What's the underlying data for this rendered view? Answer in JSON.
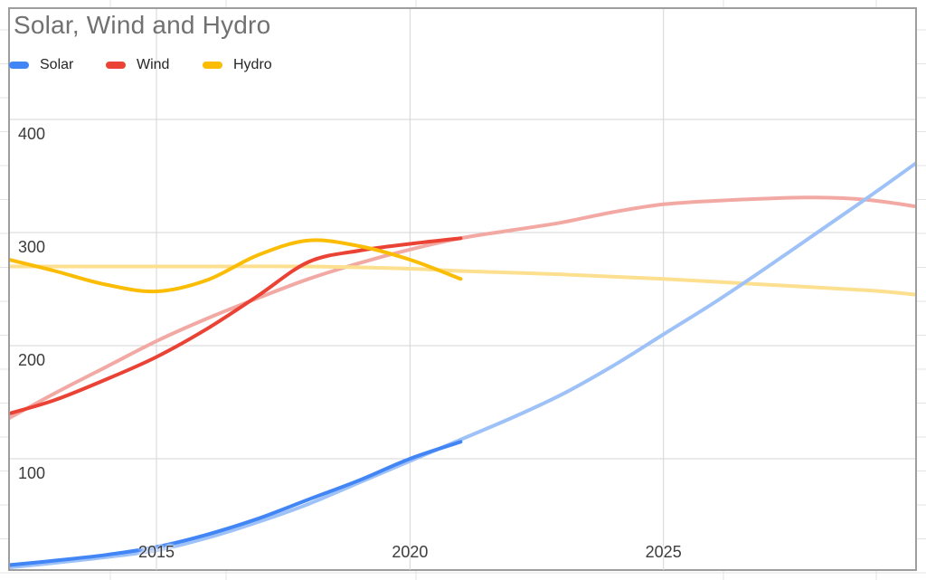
{
  "chart": {
    "title": "Solar, Wind and Hydro",
    "legend": {
      "items": [
        {
          "label": "Solar",
          "color": "#4285f4"
        },
        {
          "label": "Wind",
          "color": "#ea4335"
        },
        {
          "label": "Hydro",
          "color": "#fbbc04"
        }
      ]
    },
    "axes": {
      "x": {
        "ticks": [
          {
            "label": "2015",
            "year": 2015
          },
          {
            "label": "2020",
            "year": 2020
          },
          {
            "label": "2025",
            "year": 2025
          }
        ]
      },
      "y": {
        "ticks": [
          {
            "label": "400",
            "value": 400
          },
          {
            "label": "300",
            "value": 300
          },
          {
            "label": "200",
            "value": 200
          },
          {
            "label": "100",
            "value": 100
          }
        ]
      }
    }
  },
  "chart_data": {
    "type": "line",
    "title": "Solar, Wind and Hydro",
    "xlabel": "",
    "ylabel": "",
    "legend_position": "top-left",
    "grid": true,
    "x_axis": {
      "range": [
        2012.1,
        2030.0
      ],
      "gridlines": [
        2015,
        2020,
        2025
      ]
    },
    "y_axis": {
      "range": [
        0,
        498
      ],
      "gridlines": [
        100,
        200,
        300,
        400
      ]
    },
    "series": [
      {
        "name": "Wind trendline",
        "style": "trend",
        "color": "#f3a9a3",
        "points": [
          [
            2012.1,
            136
          ],
          [
            2013,
            158
          ],
          [
            2014,
            181
          ],
          [
            2015,
            204
          ],
          [
            2016,
            224
          ],
          [
            2017,
            242
          ],
          [
            2018,
            259
          ],
          [
            2019,
            273
          ],
          [
            2020,
            285
          ],
          [
            2021,
            295
          ],
          [
            2022,
            302
          ],
          [
            2023,
            309
          ],
          [
            2024,
            318
          ],
          [
            2025,
            325
          ],
          [
            2026,
            328
          ],
          [
            2027,
            330
          ],
          [
            2028,
            331
          ],
          [
            2029,
            329
          ],
          [
            2030,
            323
          ]
        ]
      },
      {
        "name": "Hydro trendline",
        "style": "trend",
        "color": "#fcdf8f",
        "points": [
          [
            2012.1,
            270
          ],
          [
            2014,
            270
          ],
          [
            2016,
            270
          ],
          [
            2018,
            270
          ],
          [
            2020,
            268
          ],
          [
            2021,
            266
          ],
          [
            2023,
            263
          ],
          [
            2025,
            259
          ],
          [
            2027,
            254
          ],
          [
            2029,
            249
          ],
          [
            2030,
            245
          ]
        ]
      },
      {
        "name": "Solar trendline",
        "style": "trend",
        "color": "#9ec2f8",
        "points": [
          [
            2012.1,
            4
          ],
          [
            2013,
            8
          ],
          [
            2014,
            13
          ],
          [
            2015,
            19
          ],
          [
            2016,
            30
          ],
          [
            2017,
            44
          ],
          [
            2018,
            60
          ],
          [
            2019,
            79
          ],
          [
            2020,
            98
          ],
          [
            2021,
            117
          ],
          [
            2022,
            136
          ],
          [
            2023,
            157
          ],
          [
            2024,
            182
          ],
          [
            2025,
            210
          ],
          [
            2026,
            238
          ],
          [
            2027,
            268
          ],
          [
            2028,
            299
          ],
          [
            2029,
            330
          ],
          [
            2030,
            362
          ]
        ]
      },
      {
        "name": "Solar",
        "style": "solid",
        "color": "#4285f4",
        "points": [
          [
            2012.1,
            6
          ],
          [
            2013,
            10
          ],
          [
            2014,
            15
          ],
          [
            2015,
            22
          ],
          [
            2016,
            33
          ],
          [
            2017,
            47
          ],
          [
            2018,
            64
          ],
          [
            2019,
            81
          ],
          [
            2020,
            100
          ],
          [
            2021,
            115
          ]
        ]
      },
      {
        "name": "Wind",
        "style": "solid",
        "color": "#ea4335",
        "points": [
          [
            2012.1,
            140
          ],
          [
            2013,
            152
          ],
          [
            2014,
            170
          ],
          [
            2015,
            190
          ],
          [
            2016,
            215
          ],
          [
            2017,
            244
          ],
          [
            2018,
            274
          ],
          [
            2019,
            284
          ],
          [
            2020,
            290
          ],
          [
            2021,
            295
          ]
        ]
      },
      {
        "name": "Hydro",
        "style": "solid",
        "color": "#fbbc04",
        "points": [
          [
            2012.1,
            276
          ],
          [
            2013,
            266
          ],
          [
            2014,
            254
          ],
          [
            2015,
            248
          ],
          [
            2016,
            258
          ],
          [
            2017,
            280
          ],
          [
            2018,
            293
          ],
          [
            2019,
            288
          ],
          [
            2020,
            276
          ],
          [
            2021,
            259
          ]
        ]
      }
    ]
  }
}
